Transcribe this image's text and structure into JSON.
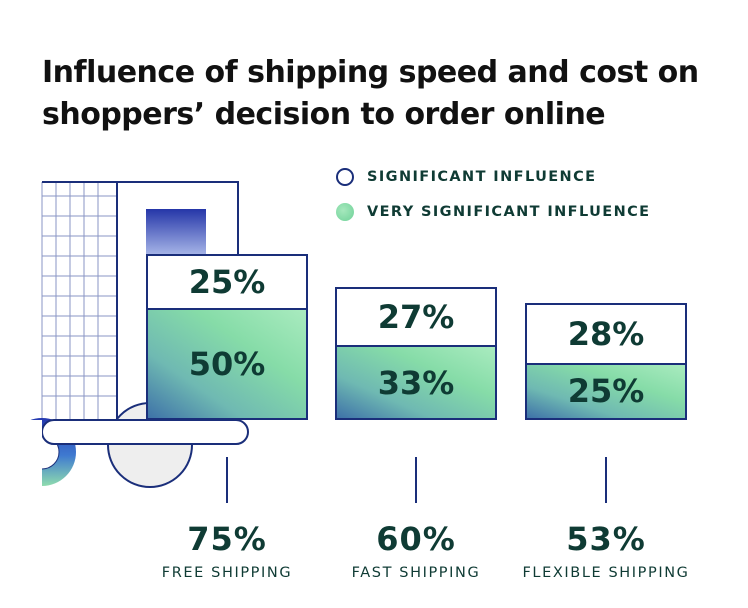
{
  "chart_data": {
    "type": "bar",
    "stacked": true,
    "title": "Influence of shipping speed and cost on shoppers’ decision to order online",
    "categories": [
      "FREE SHIPPING",
      "FAST SHIPPING",
      "FLEXIBLE SHIPPING"
    ],
    "totals": [
      "75%",
      "60%",
      "53%"
    ],
    "series": [
      {
        "name": "VERY SIGNIFICANT INFLUENCE",
        "values": [
          50,
          33,
          25
        ],
        "labels": [
          "50%",
          "33%",
          "25%"
        ],
        "color": "#86dca8"
      },
      {
        "name": "SIGNIFICANT INFLUENCE",
        "values": [
          25,
          27,
          28
        ],
        "labels": [
          "25%",
          "27%",
          "28%"
        ],
        "color": "#ffffff"
      }
    ],
    "legend": {
      "position": "top-right"
    },
    "colors": {
      "outline": "#1a2e7a",
      "text": "#0f3b34",
      "accent_blue": "#2f46b5"
    }
  }
}
